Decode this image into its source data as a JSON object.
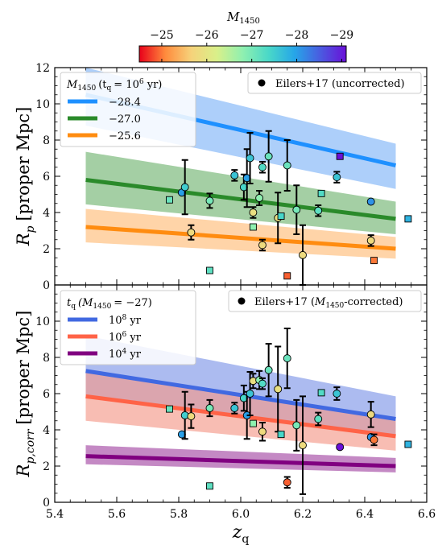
{
  "colorbar": {
    "label": "M",
    "label_sub": "1450",
    "tick_labels": [
      "−25",
      "−26",
      "−27",
      "−28",
      "−29"
    ],
    "tick_values": [
      -25,
      -26,
      -27,
      -28,
      -29
    ],
    "range": [
      -24.5,
      -29.1
    ],
    "colors": [
      "#e8001a",
      "#ff8a3c",
      "#f6d27a",
      "#d9f08a",
      "#8ff0b0",
      "#49d8c8",
      "#26a6e8",
      "#4a5be0",
      "#6a10d8"
    ]
  },
  "chart_data": [
    {
      "type": "line",
      "xlim": [
        5.4,
        6.6
      ],
      "ylim": [
        0,
        12
      ],
      "x_ticks": [
        5.4,
        5.6,
        5.8,
        6.0,
        6.2,
        6.4,
        6.6
      ],
      "x_tick_labels": [
        "5.4",
        "5.6",
        "5.8",
        "6.0",
        "6.2",
        "6.4",
        "6.6"
      ],
      "y_ticks": [
        0,
        2,
        4,
        6,
        8,
        10,
        12
      ],
      "y_tick_labels": [
        "0",
        "2",
        "4",
        "6",
        "8",
        "10",
        "12"
      ],
      "ylabel_main": "R",
      "ylabel_sub": "p",
      "ylabel_rest": "[proper Mpc]",
      "legend_title": {
        "m": "M",
        "sub": "1450",
        "paren": "(t",
        "paren_sub": "q",
        "rest": "= 10",
        "sup": "6",
        "unit": " yr)"
      },
      "legend_placement": "upper-left",
      "series": [
        {
          "name": "−28.4",
          "color": "#1e90ff",
          "band_color": "#6aa7f5",
          "band_alpha": 0.55,
          "x": [
            5.5,
            6.5
          ],
          "y": [
            10.5,
            6.6
          ],
          "band_low": [
            8.8,
            5.3
          ],
          "band_high": [
            12.0,
            7.8
          ]
        },
        {
          "name": "−27.0",
          "color": "#2a8a2a",
          "band_color": "#5aa85a",
          "band_alpha": 0.55,
          "x": [
            5.5,
            6.5
          ],
          "y": [
            5.8,
            3.65
          ],
          "band_low": [
            4.45,
            2.8
          ],
          "band_high": [
            7.35,
            4.6
          ]
        },
        {
          "name": "−25.6",
          "color": "#ff8c10",
          "band_color": "#ffb060",
          "band_alpha": 0.55,
          "x": [
            5.5,
            6.5
          ],
          "y": [
            3.2,
            2.0
          ],
          "band_low": [
            2.35,
            1.45
          ],
          "band_high": [
            4.2,
            2.65
          ]
        }
      ],
      "scatter_legend": "Eilers+17 (uncorrected)",
      "scatter_legend_placement": "upper-right",
      "points": [
        {
          "x": 5.77,
          "y": 4.7,
          "err": 0,
          "m": -27.1,
          "marker": "square"
        },
        {
          "x": 5.81,
          "y": 5.1,
          "err": 0,
          "m": -28.0,
          "marker": "circle"
        },
        {
          "x": 5.82,
          "y": 5.4,
          "err": 1.5,
          "m": -27.5,
          "marker": "circle"
        },
        {
          "x": 5.84,
          "y": 2.9,
          "err": 0.4,
          "m": -25.8,
          "marker": "circle"
        },
        {
          "x": 5.9,
          "y": 0.8,
          "err": 0,
          "m": -27.2,
          "marker": "square"
        },
        {
          "x": 5.9,
          "y": 4.65,
          "err": 0.4,
          "m": -27.0,
          "marker": "circle"
        },
        {
          "x": 5.98,
          "y": 6.05,
          "err": 0.3,
          "m": -27.6,
          "marker": "circle"
        },
        {
          "x": 6.01,
          "y": 5.4,
          "err": 0.7,
          "m": -27.4,
          "marker": "circle"
        },
        {
          "x": 6.02,
          "y": 5.9,
          "err": 1.6,
          "m": -28.0,
          "marker": "circle"
        },
        {
          "x": 6.03,
          "y": 7.0,
          "err": 1.4,
          "m": -27.6,
          "marker": "circle"
        },
        {
          "x": 6.04,
          "y": 3.2,
          "err": 0,
          "m": -26.8,
          "marker": "square"
        },
        {
          "x": 6.04,
          "y": 4.0,
          "err": 0.3,
          "m": -25.9,
          "marker": "circle"
        },
        {
          "x": 6.06,
          "y": 4.8,
          "err": 0.4,
          "m": -26.8,
          "marker": "circle"
        },
        {
          "x": 6.07,
          "y": 6.5,
          "err": 0.3,
          "m": -27.3,
          "marker": "circle"
        },
        {
          "x": 6.07,
          "y": 2.2,
          "err": 0.3,
          "m": -25.8,
          "marker": "circle"
        },
        {
          "x": 6.09,
          "y": 7.1,
          "err": 1.4,
          "m": -27.1,
          "marker": "circle"
        },
        {
          "x": 6.12,
          "y": 3.7,
          "err": 1.4,
          "m": -25.9,
          "marker": "circle"
        },
        {
          "x": 6.13,
          "y": 3.8,
          "err": 0,
          "m": -27.4,
          "marker": "square"
        },
        {
          "x": 6.15,
          "y": 6.6,
          "err": 1.4,
          "m": -27.1,
          "marker": "circle"
        },
        {
          "x": 6.15,
          "y": 0.5,
          "err": 0,
          "m": -24.9,
          "marker": "square"
        },
        {
          "x": 6.18,
          "y": 4.15,
          "err": 1.35,
          "m": -27.0,
          "marker": "circle"
        },
        {
          "x": 6.2,
          "y": 1.65,
          "err": 1.65,
          "m": -25.8,
          "marker": "circle"
        },
        {
          "x": 6.25,
          "y": 4.1,
          "err": 0.3,
          "m": -27.2,
          "marker": "circle"
        },
        {
          "x": 6.26,
          "y": 5.05,
          "err": 0,
          "m": -27.3,
          "marker": "square"
        },
        {
          "x": 6.31,
          "y": 5.95,
          "err": 0.3,
          "m": -27.6,
          "marker": "circle"
        },
        {
          "x": 6.32,
          "y": 7.1,
          "err": 0,
          "m": -29.1,
          "marker": "square"
        },
        {
          "x": 6.42,
          "y": 4.6,
          "err": 0,
          "m": -28.1,
          "marker": "circle"
        },
        {
          "x": 6.42,
          "y": 2.45,
          "err": 0.3,
          "m": -25.8,
          "marker": "circle"
        },
        {
          "x": 6.43,
          "y": 1.35,
          "err": 0,
          "m": -25.0,
          "marker": "square"
        },
        {
          "x": 6.54,
          "y": 3.65,
          "err": 0,
          "m": -27.8,
          "marker": "square"
        }
      ]
    },
    {
      "type": "line",
      "xlim": [
        5.4,
        6.6
      ],
      "ylim": [
        0,
        12
      ],
      "x_ticks": [
        5.4,
        5.6,
        5.8,
        6.0,
        6.2,
        6.4,
        6.6
      ],
      "x_tick_labels": [
        "5.4",
        "5.6",
        "5.8",
        "6.0",
        "6.2",
        "6.4",
        "6.6"
      ],
      "y_ticks": [
        0,
        2,
        4,
        6,
        8,
        10
      ],
      "y_tick_labels": [
        "0",
        "2",
        "4",
        "6",
        "8",
        "10"
      ],
      "ylabel_main": "R",
      "ylabel_sub": "p,corr",
      "ylabel_rest": "[proper Mpc]",
      "xlabel_main": "z",
      "xlabel_sub": "q",
      "legend_title": {
        "t": "t",
        "sub": "q",
        "paren": "(M",
        "paren_sub": "1450",
        "rest": "= −27)"
      },
      "legend_placement": "upper-left",
      "series": [
        {
          "name": "10",
          "sup": "8",
          "unit": " yr",
          "color": "#4169e1",
          "band_color": "#7f96e8",
          "band_alpha": 0.65,
          "x": [
            5.5,
            6.5
          ],
          "y": [
            7.25,
            4.6
          ],
          "band_low": [
            5.75,
            3.65
          ],
          "band_high": [
            9.2,
            5.85
          ]
        },
        {
          "name": "10",
          "sup": "6",
          "unit": " yr",
          "color": "#ff6347",
          "band_color": "#f59a8a",
          "band_alpha": 0.65,
          "x": [
            5.5,
            6.5
          ],
          "y": [
            5.85,
            3.65
          ],
          "band_low": [
            4.5,
            2.85
          ],
          "band_high": [
            7.35,
            4.6
          ]
        },
        {
          "name": "10",
          "sup": "4",
          "unit": " yr",
          "color": "#800080",
          "band_color": "#a54aa5",
          "band_alpha": 0.65,
          "x": [
            5.5,
            6.5
          ],
          "y": [
            2.55,
            2.0
          ],
          "band_low": [
            2.1,
            1.65
          ],
          "band_high": [
            3.15,
            2.45
          ]
        }
      ],
      "scatter_legend": "Eilers+17 (M1450-corrected)",
      "scatter_legend_main": "Eilers+17 (",
      "scatter_legend_m": "M",
      "scatter_legend_sub": "1450",
      "scatter_legend_tail": "-corrected)",
      "scatter_legend_placement": "upper-right",
      "points": [
        {
          "x": 5.77,
          "y": 5.15,
          "err": 0,
          "m": -27.1,
          "marker": "square"
        },
        {
          "x": 5.81,
          "y": 3.75,
          "err": 0,
          "m": -28.0,
          "marker": "circle"
        },
        {
          "x": 5.82,
          "y": 4.8,
          "err": 1.3,
          "m": -27.5,
          "marker": "circle"
        },
        {
          "x": 5.84,
          "y": 4.75,
          "err": 0.65,
          "m": -25.8,
          "marker": "circle"
        },
        {
          "x": 5.9,
          "y": 0.9,
          "err": 0,
          "m": -27.2,
          "marker": "square"
        },
        {
          "x": 5.9,
          "y": 5.2,
          "err": 0.45,
          "m": -27.0,
          "marker": "circle"
        },
        {
          "x": 5.98,
          "y": 5.2,
          "err": 0.3,
          "m": -27.6,
          "marker": "circle"
        },
        {
          "x": 6.01,
          "y": 5.75,
          "err": 0.7,
          "m": -27.4,
          "marker": "circle"
        },
        {
          "x": 6.02,
          "y": 4.8,
          "err": 1.3,
          "m": -28.0,
          "marker": "circle"
        },
        {
          "x": 6.03,
          "y": 6.0,
          "err": 1.2,
          "m": -27.6,
          "marker": "circle"
        },
        {
          "x": 6.04,
          "y": 4.35,
          "err": 0,
          "m": -26.8,
          "marker": "square"
        },
        {
          "x": 6.04,
          "y": 6.7,
          "err": 0.4,
          "m": -25.9,
          "marker": "circle"
        },
        {
          "x": 6.06,
          "y": 6.75,
          "err": 0.5,
          "m": -26.8,
          "marker": "circle"
        },
        {
          "x": 6.07,
          "y": 6.55,
          "err": 0.3,
          "m": -27.3,
          "marker": "circle"
        },
        {
          "x": 6.07,
          "y": 3.9,
          "err": 0.5,
          "m": -25.8,
          "marker": "circle"
        },
        {
          "x": 6.09,
          "y": 7.3,
          "err": 1.45,
          "m": -27.1,
          "marker": "circle"
        },
        {
          "x": 6.12,
          "y": 6.25,
          "err": 2.35,
          "m": -25.9,
          "marker": "circle"
        },
        {
          "x": 6.13,
          "y": 3.75,
          "err": 0,
          "m": -27.4,
          "marker": "square"
        },
        {
          "x": 6.15,
          "y": 7.95,
          "err": 1.65,
          "m": -27.1,
          "marker": "circle"
        },
        {
          "x": 6.15,
          "y": 1.1,
          "err": 0.3,
          "m": -24.9,
          "marker": "circle"
        },
        {
          "x": 6.18,
          "y": 4.25,
          "err": 1.4,
          "m": -27.0,
          "marker": "circle"
        },
        {
          "x": 6.2,
          "y": 3.15,
          "err": 2.7,
          "m": -25.8,
          "marker": "circle"
        },
        {
          "x": 6.25,
          "y": 4.6,
          "err": 0.35,
          "m": -27.2,
          "marker": "circle"
        },
        {
          "x": 6.26,
          "y": 6.05,
          "err": 0,
          "m": -27.3,
          "marker": "square"
        },
        {
          "x": 6.31,
          "y": 6.0,
          "err": 0.35,
          "m": -27.6,
          "marker": "circle"
        },
        {
          "x": 6.32,
          "y": 3.05,
          "err": 0,
          "m": -29.1,
          "marker": "circle"
        },
        {
          "x": 6.42,
          "y": 4.85,
          "err": 0.7,
          "m": -25.8,
          "marker": "circle"
        },
        {
          "x": 6.42,
          "y": 3.6,
          "err": 0,
          "m": -28.1,
          "marker": "circle"
        },
        {
          "x": 6.43,
          "y": 3.45,
          "err": 0.3,
          "m": -25.0,
          "marker": "circle"
        },
        {
          "x": 6.54,
          "y": 3.2,
          "err": 0,
          "m": -27.8,
          "marker": "square"
        }
      ]
    }
  ]
}
